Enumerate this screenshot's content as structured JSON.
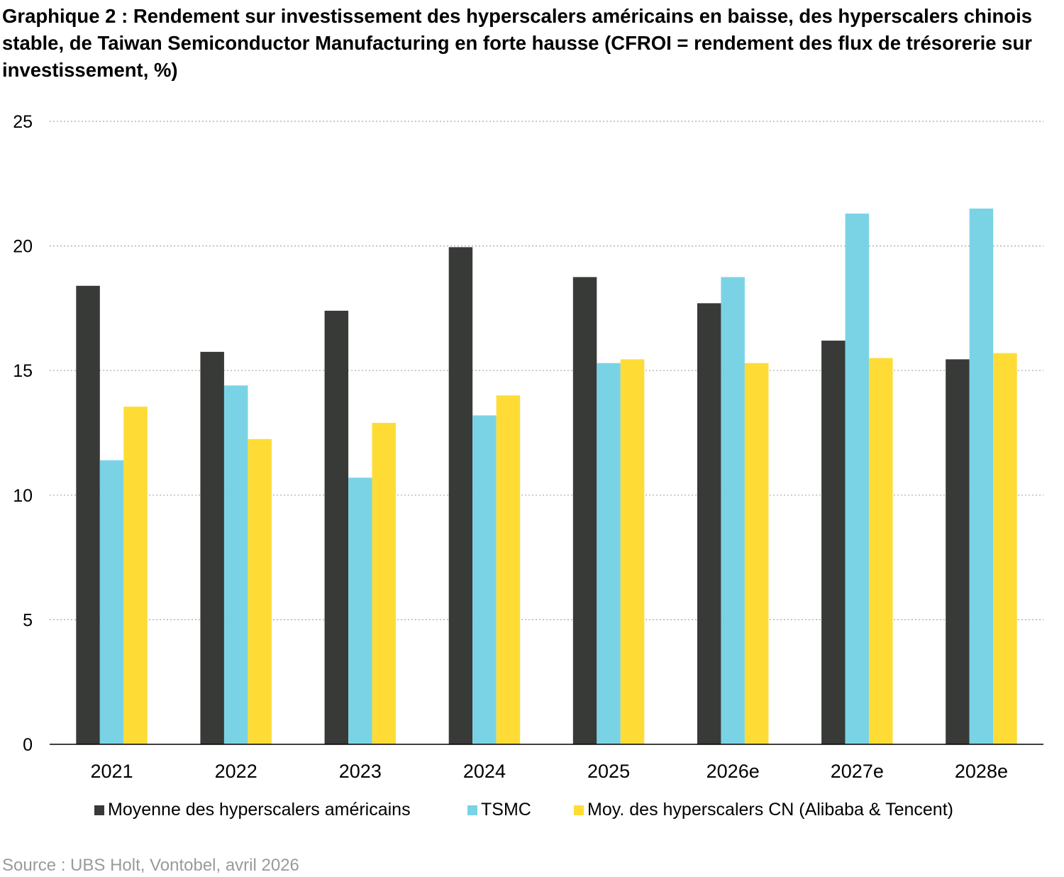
{
  "chart_data": {
    "type": "bar",
    "title": "Graphique 2 : Rendement sur investissement des hyperscalers américains en baisse, des hyperscalers chinois stable, de Taiwan Semiconductor Manufacturing en forte hausse (CFROI = rendement des flux de trésorerie sur investissement, %)",
    "categories": [
      "2021",
      "2022",
      "2023",
      "2024",
      "2025",
      "2026e",
      "2027e",
      "2028e"
    ],
    "series": [
      {
        "name": "Moyenne des hyperscalers américains",
        "color": "#383a37",
        "values": [
          18.4,
          15.75,
          17.4,
          19.95,
          18.75,
          17.7,
          16.2,
          15.45
        ]
      },
      {
        "name": "TSMC",
        "color": "#7ad3e5",
        "values": [
          11.4,
          14.4,
          10.7,
          13.2,
          15.3,
          18.75,
          21.3,
          21.5
        ]
      },
      {
        "name": "Moy. des hyperscalers CN (Alibaba & Tencent)",
        "color": "#fedc35",
        "values": [
          13.55,
          12.25,
          12.9,
          14.0,
          15.45,
          15.3,
          15.5,
          15.7
        ]
      }
    ],
    "ylim": [
      0,
      25
    ],
    "yticks": [
      0,
      5,
      10,
      15,
      20,
      25
    ],
    "grid": true,
    "legend_position": "bottom"
  },
  "source": "Source : UBS Holt, Vontobel, avril 2026"
}
